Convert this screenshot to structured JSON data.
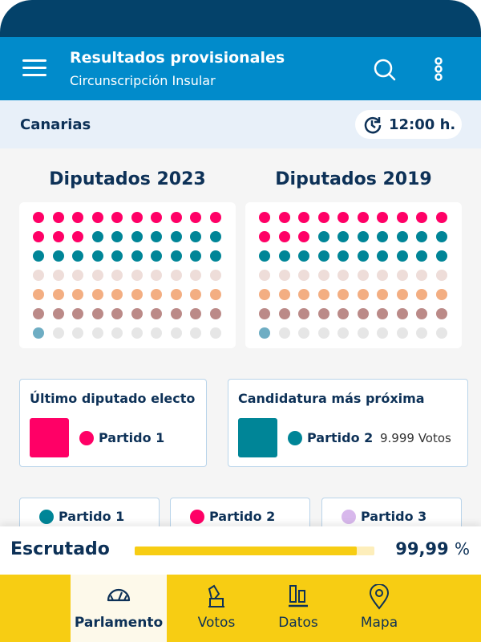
{
  "header": {
    "title": "Resultados provisionales",
    "subtitle": "Circunscripción Insular"
  },
  "subheader": {
    "region": "Canarias",
    "time": "12:00 h."
  },
  "colors": {
    "p_pink": "#ff0066",
    "p_teal": "#008597",
    "p_pale": "#eeddd9",
    "p_orange": "#f3ae82",
    "p_mauve": "#bb8a88",
    "p_blue": "#6eadc3",
    "empty": "#e6e6e6",
    "p3_lilac": "#d8b8ec",
    "accent": "#f7cd13"
  },
  "grids": [
    {
      "title": "Diputados 2023",
      "seats": [
        {
          "color": "p_pink",
          "count": 13
        },
        {
          "color": "p_teal",
          "count": 17
        },
        {
          "color": "p_pale",
          "count": 10
        },
        {
          "color": "p_orange",
          "count": 10
        },
        {
          "color": "p_mauve",
          "count": 10
        },
        {
          "color": "p_blue",
          "count": 1
        },
        {
          "color": "empty",
          "count": 9
        }
      ]
    },
    {
      "title": "Diputados 2019",
      "seats": [
        {
          "color": "p_pink",
          "count": 13
        },
        {
          "color": "p_teal",
          "count": 17
        },
        {
          "color": "p_pale",
          "count": 10
        },
        {
          "color": "p_orange",
          "count": 10
        },
        {
          "color": "p_mauve",
          "count": 10
        },
        {
          "color": "p_blue",
          "count": 1
        },
        {
          "color": "empty",
          "count": 9
        }
      ]
    }
  ],
  "last_elected": {
    "title": "Último diputado electo",
    "party": "Partido 1"
  },
  "next_candidate": {
    "title": "Candidatura más próxima",
    "party": "Partido 2",
    "votes": "9.999 Votos"
  },
  "legend": [
    "Partido 1",
    "Partido 2",
    "Partido 3"
  ],
  "scrutiny": {
    "label": "Escrutado",
    "value": "99,99",
    "unit": "%",
    "fraction": 0.9999
  },
  "nav": [
    {
      "label": "Parlamento"
    },
    {
      "label": "Votos"
    },
    {
      "label": "Datos"
    },
    {
      "label": "Mapa"
    }
  ]
}
